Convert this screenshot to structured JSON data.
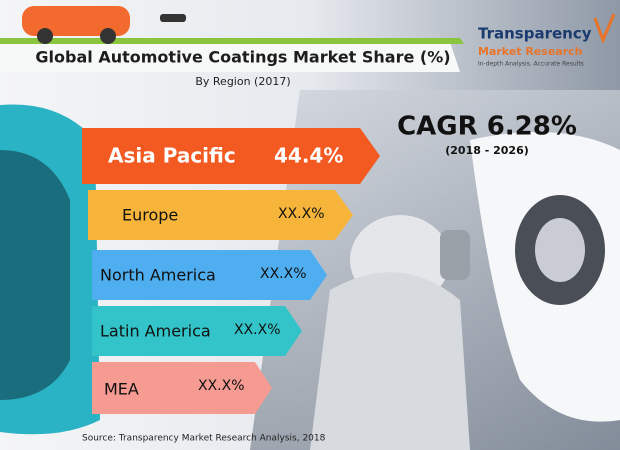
{
  "header": {
    "title": "Global Automotive Coatings Market Share (%)",
    "subtitle": "By Region (2017)"
  },
  "logo": {
    "name": "Transparency",
    "name2": "Market Research",
    "tagline": "In-depth Analysis. Accurate Results"
  },
  "cagr": {
    "label": "CAGR 6.28%",
    "period": "(2018 - 2026)"
  },
  "regions": [
    {
      "name": "Asia Pacific",
      "share": "44.4%"
    },
    {
      "name": "Europe",
      "share": "XX.X%"
    },
    {
      "name": "North America",
      "share": "XX.X%"
    },
    {
      "name": "Latin America",
      "share": "XX.X%"
    },
    {
      "name": "MEA",
      "share": "XX.X%"
    }
  ],
  "source": "Source: Transparency Market Research Analysis, 2018"
}
